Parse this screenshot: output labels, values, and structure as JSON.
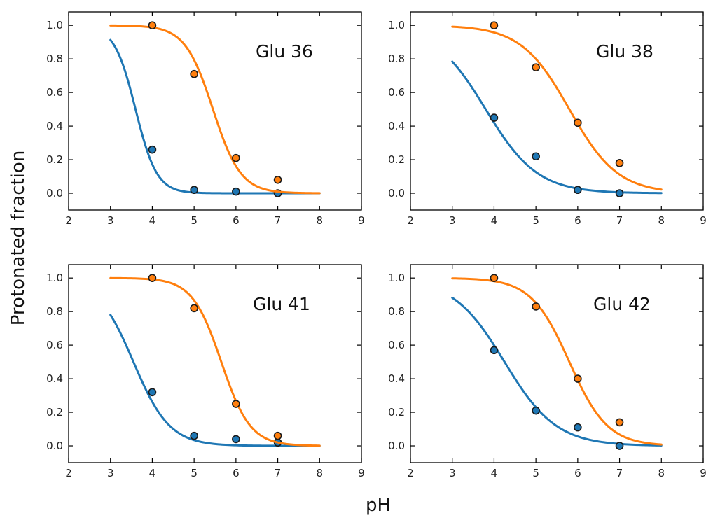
{
  "figure": {
    "ylabel": "Protonated fraction",
    "xlabel": "pH"
  },
  "colors": {
    "blue": "#1f77b4",
    "orange": "#ff7f0e"
  },
  "chart_data": [
    {
      "type": "scatter",
      "title": "Glu 36",
      "xlim": [
        2,
        9
      ],
      "ylim": [
        -0.1,
        1.08
      ],
      "xticks": [
        2,
        3,
        4,
        5,
        6,
        7,
        8,
        9
      ],
      "yticks": [
        "0.0",
        "0.2",
        "0.4",
        "0.6",
        "0.8",
        "1.0"
      ],
      "grid": false,
      "series": [
        {
          "color": "blue",
          "points": {
            "x": [
              4,
              5,
              6,
              7
            ],
            "y": [
              0.26,
              0.02,
              0.01,
              0.0
            ]
          },
          "fit": {
            "pKa": 3.6,
            "n": 1.7,
            "x_range": [
              3,
              8
            ]
          }
        },
        {
          "color": "orange",
          "points": {
            "x": [
              4,
              5,
              6,
              7
            ],
            "y": [
              1.0,
              0.71,
              0.21,
              0.08
            ]
          },
          "fit": {
            "pKa": 5.45,
            "n": 1.3,
            "x_range": [
              3,
              8
            ]
          }
        }
      ]
    },
    {
      "type": "scatter",
      "title": "Glu 38",
      "xlim": [
        2,
        9
      ],
      "ylim": [
        -0.1,
        1.08
      ],
      "xticks": [
        2,
        3,
        4,
        5,
        6,
        7,
        8,
        9
      ],
      "yticks": [
        "0.0",
        "0.2",
        "0.4",
        "0.6",
        "0.8",
        "1.0"
      ],
      "grid": false,
      "series": [
        {
          "color": "blue",
          "points": {
            "x": [
              4,
              5,
              6,
              7
            ],
            "y": [
              0.45,
              0.22,
              0.02,
              0.0
            ]
          },
          "fit": {
            "pKa": 3.8,
            "n": 0.7,
            "x_range": [
              3,
              8
            ]
          }
        },
        {
          "color": "orange",
          "points": {
            "x": [
              4,
              5,
              6,
              7
            ],
            "y": [
              1.0,
              0.75,
              0.42,
              0.18
            ]
          },
          "fit": {
            "pKa": 5.8,
            "n": 0.75,
            "x_range": [
              3,
              8
            ]
          }
        }
      ]
    },
    {
      "type": "scatter",
      "title": "Glu 41",
      "xlim": [
        2,
        9
      ],
      "ylim": [
        -0.1,
        1.08
      ],
      "xticks": [
        2,
        3,
        4,
        5,
        6,
        7,
        8,
        9
      ],
      "yticks": [
        "0.0",
        "0.2",
        "0.4",
        "0.6",
        "0.8",
        "1.0"
      ],
      "grid": false,
      "series": [
        {
          "color": "blue",
          "points": {
            "x": [
              4,
              5,
              6,
              7
            ],
            "y": [
              0.32,
              0.06,
              0.04,
              0.02
            ]
          },
          "fit": {
            "pKa": 3.55,
            "n": 1.0,
            "x_range": [
              3,
              8
            ]
          }
        },
        {
          "color": "orange",
          "points": {
            "x": [
              4,
              5,
              6,
              7
            ],
            "y": [
              1.0,
              0.82,
              0.25,
              0.06
            ]
          },
          "fit": {
            "pKa": 5.65,
            "n": 1.25,
            "x_range": [
              3,
              8
            ]
          }
        }
      ]
    },
    {
      "type": "scatter",
      "title": "Glu 42",
      "xlim": [
        2,
        9
      ],
      "ylim": [
        -0.1,
        1.08
      ],
      "xticks": [
        2,
        3,
        4,
        5,
        6,
        7,
        8,
        9
      ],
      "yticks": [
        "0.0",
        "0.2",
        "0.4",
        "0.6",
        "0.8",
        "1.0"
      ],
      "grid": false,
      "series": [
        {
          "color": "blue",
          "points": {
            "x": [
              4,
              5,
              6,
              7
            ],
            "y": [
              0.57,
              0.21,
              0.11,
              0.0
            ]
          },
          "fit": {
            "pKa": 4.25,
            "n": 0.7,
            "x_range": [
              3,
              8
            ]
          }
        },
        {
          "color": "orange",
          "points": {
            "x": [
              4,
              5,
              6,
              7
            ],
            "y": [
              1.0,
              0.83,
              0.4,
              0.14
            ]
          },
          "fit": {
            "pKa": 5.8,
            "n": 0.95,
            "x_range": [
              3,
              8
            ]
          }
        }
      ]
    }
  ]
}
